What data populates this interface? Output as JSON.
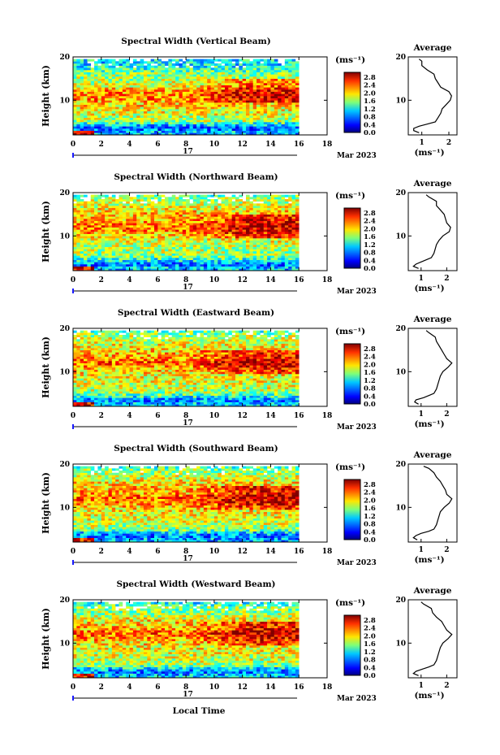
{
  "figure": {
    "date_day": "17",
    "date_month_year": "Mar 2023",
    "xlabel": "Local Time",
    "ylabel": "Height (km)",
    "colorbar_unit": "(ms⁻¹)",
    "profile_title": "Average",
    "profile_xlabel": "(ms⁻¹)"
  },
  "chart_data": [
    {
      "type": "heatmap",
      "title": "Spectral Width (Vertical Beam)",
      "xlabel": "Local Time",
      "ylabel": "Height (km)",
      "x_ticks": [
        "0",
        "2",
        "4",
        "6",
        "8",
        "10",
        "12",
        "14",
        "16",
        "18"
      ],
      "y_ticks": [
        "10",
        "20"
      ],
      "xlim": [
        0,
        18
      ],
      "ylim": [
        2,
        20
      ],
      "data_extent_hours": [
        0,
        16
      ],
      "colorbar": {
        "unit": "(ms⁻¹)",
        "ticks": [
          "2.8",
          "2.4",
          "2.0",
          "1.6",
          "1.2",
          "0.8",
          "0.4",
          "0.0"
        ],
        "range": [
          0.0,
          2.8
        ]
      },
      "profile": {
        "title": "Average",
        "xlabel": "(ms⁻¹)",
        "x_ticks": [
          "1",
          "2"
        ],
        "xlim": [
          0.5,
          2.3
        ],
        "y_ticks": [
          "10",
          "20"
        ],
        "heights": [
          2.5,
          3,
          3.5,
          4,
          4.5,
          5,
          6,
          7,
          8,
          9,
          10,
          11,
          12,
          13,
          14,
          15,
          16,
          17,
          18,
          19,
          19.5
        ],
        "values": [
          0.9,
          0.7,
          0.7,
          0.9,
          1.2,
          1.5,
          1.6,
          1.7,
          1.75,
          1.9,
          2.05,
          2.1,
          2.0,
          1.7,
          1.6,
          1.5,
          1.45,
          1.2,
          1.0,
          1.0,
          0.9
        ]
      }
    },
    {
      "type": "heatmap",
      "title": "Spectral Width (Northward Beam)",
      "xlabel": "Local Time",
      "ylabel": "Height (km)",
      "x_ticks": [
        "0",
        "2",
        "4",
        "6",
        "8",
        "10",
        "12",
        "14",
        "16",
        "18"
      ],
      "y_ticks": [
        "10",
        "20"
      ],
      "xlim": [
        0,
        18
      ],
      "ylim": [
        2,
        20
      ],
      "data_extent_hours": [
        0,
        16
      ],
      "colorbar": {
        "unit": "(ms⁻¹)",
        "ticks": [
          "2.8",
          "2.4",
          "2.0",
          "1.6",
          "1.2",
          "0.8",
          "0.4",
          "0.0"
        ],
        "range": [
          0.0,
          2.8
        ]
      },
      "profile": {
        "title": "Average",
        "xlabel": "(ms⁻¹)",
        "x_ticks": [
          "1",
          "2"
        ],
        "xlim": [
          0.5,
          2.4
        ],
        "y_ticks": [
          "10",
          "20"
        ],
        "heights": [
          2.5,
          3,
          3.5,
          4,
          4.5,
          5,
          6,
          7,
          8,
          9,
          10,
          11,
          12,
          13,
          14,
          15,
          16,
          17,
          18,
          19,
          19.5
        ],
        "values": [
          0.9,
          0.7,
          0.8,
          1.0,
          1.2,
          1.4,
          1.5,
          1.55,
          1.6,
          1.7,
          1.85,
          2.1,
          2.15,
          2.0,
          1.95,
          1.9,
          1.75,
          1.6,
          1.6,
          1.3,
          1.2
        ]
      }
    },
    {
      "type": "heatmap",
      "title": "Spectral Width (Eastward Beam)",
      "xlabel": "Local Time",
      "ylabel": "Height (km)",
      "x_ticks": [
        "0",
        "2",
        "4",
        "6",
        "8",
        "10",
        "12",
        "14",
        "16",
        "18"
      ],
      "y_ticks": [
        "10",
        "20"
      ],
      "xlim": [
        0,
        18
      ],
      "ylim": [
        2,
        20
      ],
      "data_extent_hours": [
        0,
        16
      ],
      "colorbar": {
        "unit": "(ms⁻¹)",
        "ticks": [
          "2.8",
          "2.4",
          "2.0",
          "1.6",
          "1.2",
          "0.8",
          "0.4",
          "0.0"
        ],
        "range": [
          0.0,
          2.8
        ]
      },
      "profile": {
        "title": "Average",
        "xlabel": "(ms⁻¹)",
        "x_ticks": [
          "1",
          "2"
        ],
        "xlim": [
          0.5,
          2.4
        ],
        "y_ticks": [
          "10",
          "20"
        ],
        "heights": [
          2.5,
          3,
          3.5,
          4,
          4.5,
          5,
          6,
          7,
          8,
          9,
          10,
          11,
          12,
          13,
          14,
          15,
          16,
          17,
          18,
          19,
          19.5
        ],
        "values": [
          0.9,
          0.75,
          0.8,
          1.1,
          1.3,
          1.5,
          1.6,
          1.65,
          1.7,
          1.75,
          1.85,
          2.05,
          2.2,
          2.0,
          1.9,
          1.8,
          1.7,
          1.6,
          1.55,
          1.3,
          1.2
        ]
      }
    },
    {
      "type": "heatmap",
      "title": "Spectral Width (Southward Beam)",
      "xlabel": "Local Time",
      "ylabel": "Height (km)",
      "x_ticks": [
        "0",
        "2",
        "4",
        "6",
        "8",
        "10",
        "12",
        "14",
        "16",
        "18"
      ],
      "y_ticks": [
        "10",
        "20"
      ],
      "xlim": [
        0,
        18
      ],
      "ylim": [
        2,
        20
      ],
      "data_extent_hours": [
        0,
        16
      ],
      "colorbar": {
        "unit": "(ms⁻¹)",
        "ticks": [
          "2.8",
          "2.4",
          "2.0",
          "1.6",
          "1.2",
          "0.8",
          "0.4",
          "0.0"
        ],
        "range": [
          0.0,
          2.8
        ]
      },
      "profile": {
        "title": "Average",
        "xlabel": "(ms⁻¹)",
        "x_ticks": [
          "1",
          "2"
        ],
        "xlim": [
          0.5,
          2.4
        ],
        "y_ticks": [
          "10",
          "20"
        ],
        "heights": [
          2.5,
          3,
          3.5,
          4,
          4.5,
          5,
          6,
          7,
          8,
          9,
          10,
          11,
          12,
          13,
          14,
          15,
          16,
          17,
          18,
          19,
          19.5
        ],
        "values": [
          0.85,
          0.7,
          0.8,
          1.0,
          1.3,
          1.5,
          1.6,
          1.65,
          1.7,
          1.75,
          1.9,
          2.1,
          2.2,
          2.0,
          1.95,
          1.85,
          1.75,
          1.6,
          1.5,
          1.3,
          1.1
        ]
      }
    },
    {
      "type": "heatmap",
      "title": "Spectral Width (Westward Beam)",
      "xlabel": "Local Time",
      "ylabel": "Height (km)",
      "x_ticks": [
        "0",
        "2",
        "4",
        "6",
        "8",
        "10",
        "12",
        "14",
        "16",
        "18"
      ],
      "y_ticks": [
        "10",
        "20"
      ],
      "xlim": [
        0,
        18
      ],
      "ylim": [
        2,
        20
      ],
      "data_extent_hours": [
        0,
        16
      ],
      "colorbar": {
        "unit": "(ms⁻¹)",
        "ticks": [
          "2.8",
          "2.4",
          "2.0",
          "1.6",
          "1.2",
          "0.8",
          "0.4",
          "0.0"
        ],
        "range": [
          0.0,
          2.8
        ]
      },
      "profile": {
        "title": "Average",
        "xlabel": "(ms⁻¹)",
        "x_ticks": [
          "1",
          "2"
        ],
        "xlim": [
          0.5,
          2.4
        ],
        "y_ticks": [
          "10",
          "20"
        ],
        "heights": [
          2.5,
          3,
          3.5,
          4,
          4.5,
          5,
          6,
          7,
          8,
          9,
          10,
          11,
          12,
          13,
          14,
          15,
          16,
          17,
          18,
          19,
          19.5
        ],
        "values": [
          0.9,
          0.7,
          0.8,
          1.05,
          1.3,
          1.5,
          1.6,
          1.65,
          1.7,
          1.75,
          1.85,
          2.05,
          2.2,
          2.0,
          1.9,
          1.8,
          1.6,
          1.45,
          1.4,
          1.1,
          1.0
        ]
      }
    }
  ]
}
